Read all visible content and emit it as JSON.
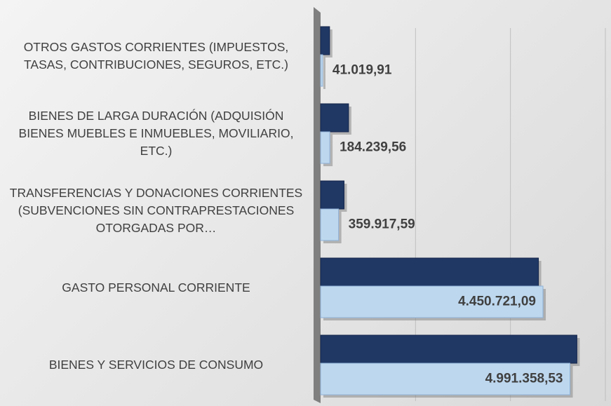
{
  "chart_data": {
    "type": "hbar",
    "categories": [
      "OTROS GASTOS CORRIENTES (IMPUESTOS, TASAS, CONTRIBUCIONES, SEGUROS, ETC.)",
      "BIENES DE LARGA DURACIÓN (ADQUISIÓN BIENES MUEBLES E INMUEBLES, MOVILIARIO, ETC.)",
      "TRANSFERENCIAS Y DONACIONES CORRIENTES (SUBVENCIONES SIN CONTRAPRESTACIONES OTORGADAS POR…",
      "GASTO PERSONAL CORRIENTE",
      "BIENES Y SERVICIOS DE CONSUMO"
    ],
    "series": [
      {
        "color": "#1f3864",
        "values": [
          180000,
          560000,
          470000,
          4360000,
          5130000
        ]
      },
      {
        "color": "#bdd7ee",
        "values": [
          41019.91,
          184239.56,
          359917.59,
          4450721.09,
          4991358.53
        ],
        "value_labels": [
          "41.019,91",
          "184.239,56",
          "359.917,59",
          "4.450.721,09",
          "4.991.358,53"
        ]
      }
    ],
    "xlim": [
      0,
      5700000
    ],
    "xticks": [
      0,
      1900000,
      3800000,
      5700000
    ],
    "grid": true
  }
}
